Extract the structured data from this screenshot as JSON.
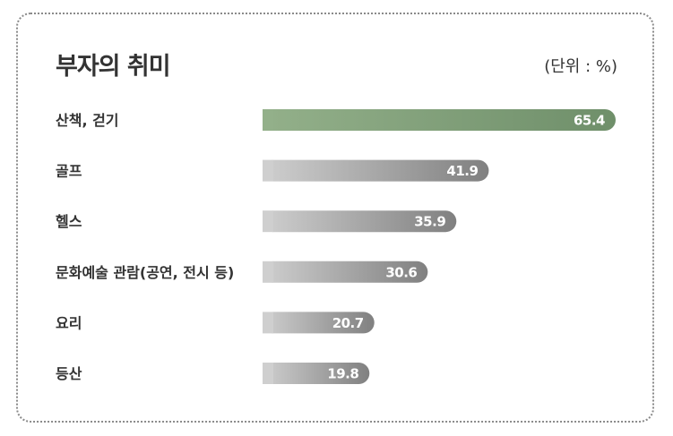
{
  "chart_data": {
    "type": "bar",
    "orientation": "horizontal",
    "title": "부자의 취미",
    "unit_label": "(단위 : %)",
    "categories": [
      "산책, 걷기",
      "골프",
      "헬스",
      "문화예술 관람(공연, 전시 등)",
      "요리",
      "등산"
    ],
    "values": [
      65.4,
      41.9,
      35.9,
      30.6,
      20.7,
      19.8
    ],
    "value_labels": [
      "65.4",
      "41.9",
      "35.9",
      "30.6",
      "20.7",
      "19.8"
    ],
    "xlim": [
      0,
      65.4
    ],
    "grid": false,
    "legend": "none",
    "colors": {
      "highlight_start": "#93b08a",
      "highlight_end": "#6f8f6a",
      "bar_start": "#cfcfcf",
      "bar_end": "#808080"
    }
  }
}
